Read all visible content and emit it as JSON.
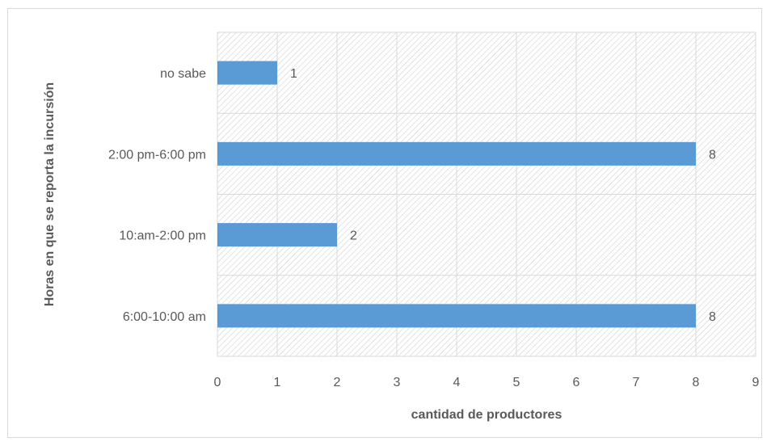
{
  "chart_data": {
    "type": "bar",
    "orientation": "horizontal",
    "title": "",
    "xlabel": "cantidad de productores",
    "ylabel": "Horas en que se reporta la incursión",
    "categories": [
      "6:00-10:00 am",
      "10:am-2:00 pm",
      "2:00 pm-6:00 pm",
      "no sabe"
    ],
    "values": [
      8,
      2,
      8,
      1
    ],
    "data_labels": [
      "8",
      "2",
      "8",
      "1"
    ],
    "xlim": [
      0,
      9
    ],
    "x_ticks": [
      "0",
      "1",
      "2",
      "3",
      "4",
      "5",
      "6",
      "7",
      "8",
      "9"
    ],
    "grid": true,
    "legend": "none",
    "colors": {
      "bar": "#5b9bd5",
      "grid": "#d9d9d9",
      "hatch": "#d0d0d0",
      "text": "#595959"
    }
  }
}
